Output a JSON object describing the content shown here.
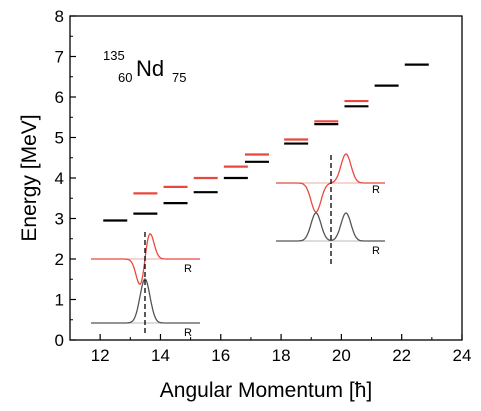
{
  "chart_data": {
    "type": "scatter",
    "title": "",
    "xlabel": "Angular Momentum [ħ]",
    "ylabel": "Energy [MeV]",
    "xlim": [
      11,
      24
    ],
    "ylim": [
      0,
      8
    ],
    "xticks": [
      12,
      14,
      16,
      18,
      20,
      22,
      24
    ],
    "yticks": [
      0,
      1,
      2,
      3,
      4,
      5,
      6,
      7,
      8
    ],
    "grid": false,
    "legend": "none",
    "colors": {
      "black_levels": "#000000",
      "red_levels": "#e8483f",
      "inset_black": "#555555",
      "inset_red": "#e8483f",
      "inset_baseline": "#bbbbbb"
    },
    "series": [
      {
        "marker": "horizontal-dash",
        "color": "black",
        "x": [
          12.5,
          13.5,
          14.5,
          15.5,
          16.5,
          17.2,
          18.5,
          19.5,
          20.5,
          21.5,
          22.5
        ],
        "y": [
          2.95,
          3.12,
          3.38,
          3.65,
          4.0,
          4.4,
          4.85,
          5.33,
          5.77,
          6.28,
          6.8
        ]
      },
      {
        "marker": "horizontal-dash",
        "color": "red",
        "x": [
          13.5,
          14.5,
          15.5,
          16.5,
          17.2,
          18.5,
          19.5,
          20.5
        ],
        "y": [
          3.62,
          3.78,
          4.0,
          4.28,
          4.58,
          4.95,
          5.4,
          5.9
        ]
      }
    ],
    "annotation": {
      "mass": "135",
      "atomic": "60",
      "symbol": "Nd",
      "neutrons": "75"
    },
    "insets": [
      {
        "name": "left",
        "label_red": "R",
        "label_black": "R"
      },
      {
        "name": "right",
        "label_red": "R",
        "label_black": "R"
      }
    ]
  }
}
